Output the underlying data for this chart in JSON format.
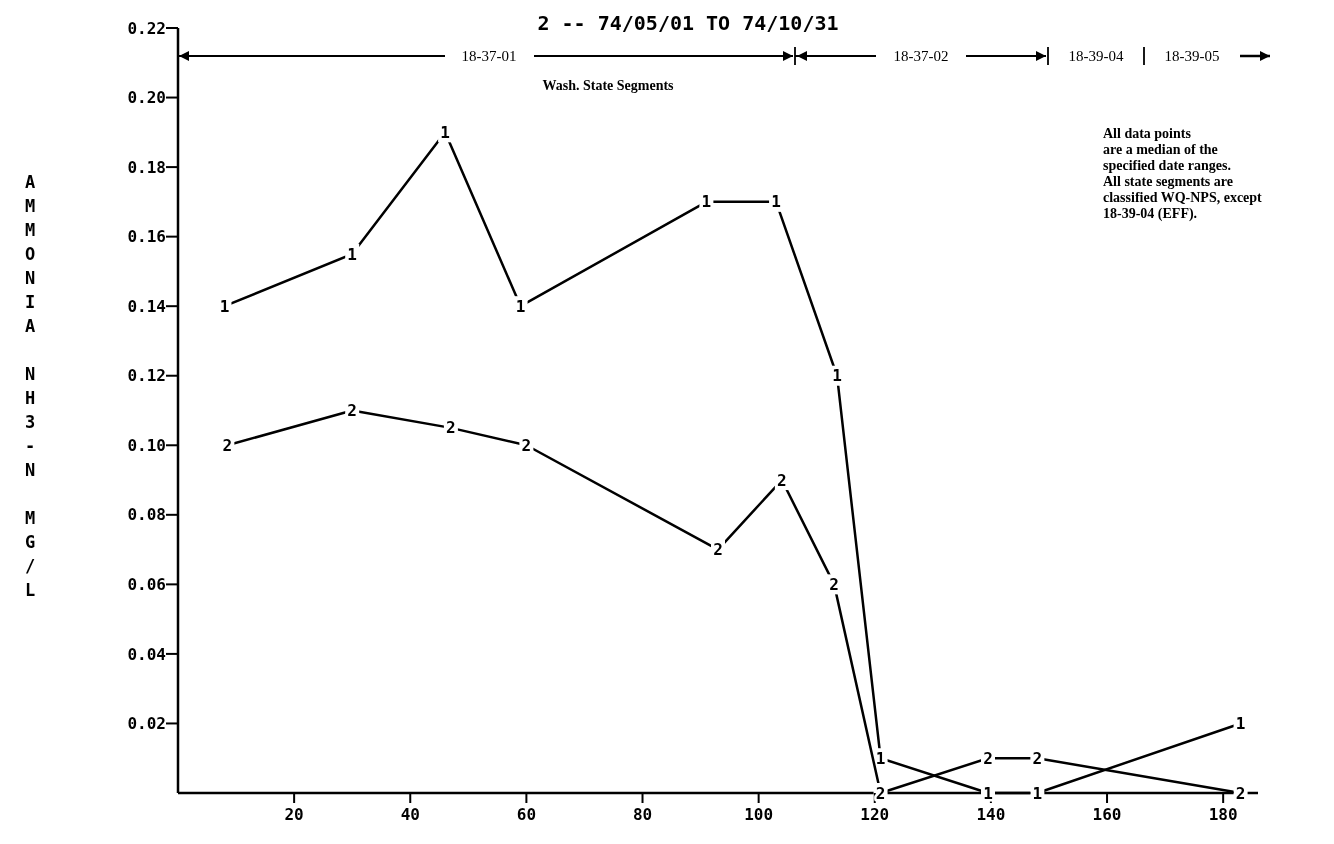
{
  "chart_data": {
    "type": "line",
    "title": "2 -- 74/05/01 TO 74/10/31",
    "ylabel": "AMMONIA NH3-N MG/L",
    "series": [
      {
        "name": "1",
        "color": "#000000",
        "x": [
          8,
          30,
          46,
          59,
          91,
          103,
          113.5,
          121,
          139.5,
          148,
          183
        ],
        "values": [
          0.14,
          0.155,
          0.19,
          0.14,
          0.17,
          0.17,
          0.12,
          0.01,
          0,
          0,
          0.02
        ]
      },
      {
        "name": "2",
        "color": "#000000",
        "x": [
          8.5,
          30,
          47,
          60,
          93,
          104,
          113,
          121,
          139.5,
          148,
          183
        ],
        "values": [
          0.1,
          0.11,
          0.105,
          0.1,
          0.07,
          0.09,
          0.06,
          0,
          0.01,
          0.01,
          0
        ]
      }
    ],
    "xlim": [
      0,
      186
    ],
    "ylim": [
      0,
      0.22
    ],
    "xticks": [
      20,
      40,
      60,
      80,
      100,
      120,
      140,
      160,
      180
    ],
    "yticks": [
      {
        "value": 0.02,
        "label": "0.02"
      },
      {
        "value": 0.04,
        "label": "0.04"
      },
      {
        "value": 0.06,
        "label": "0.06"
      },
      {
        "value": 0.08,
        "label": "0.08"
      },
      {
        "value": 0.1,
        "label": "0.10"
      },
      {
        "value": 0.12,
        "label": "0.12"
      },
      {
        "value": 0.14,
        "label": "0.14"
      },
      {
        "value": 0.16,
        "label": "0.16"
      },
      {
        "value": 0.18,
        "label": "0.18"
      },
      {
        "value": 0.2,
        "label": "0.20"
      },
      {
        "value": 0.22,
        "label": "0.22"
      }
    ],
    "annotations": [
      "18-37-01",
      "18-37-02",
      "18-39-04",
      "18-39-05",
      "Wash. State Segments",
      "All data points\nare a median of the\nspecified date ranges.\nAll state segments are\nclassified WQ-NPS, except\n18-39-04 (EFF)."
    ],
    "grid": false
  }
}
